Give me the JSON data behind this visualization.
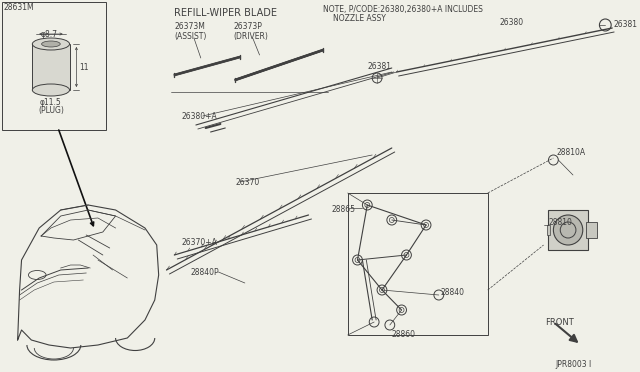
{
  "bg_color": "#f0f0e8",
  "line_color": "#404040",
  "lc_dark": "#282828",
  "plug_label": "28631M",
  "plug_dim1": "φ8.7",
  "plug_dim2": "11",
  "plug_dim3": "φ11.5",
  "plug_sub": "(PLUG)",
  "refill_title": "REFILL-WIPER BLADE",
  "label_26373M": "26373M\n(ASSIST)",
  "label_26373P": "26373P\n(DRIVER)",
  "label_26380A": "26380+A",
  "label_26370": "26370",
  "label_26370A": "26370+A",
  "label_28840P": "28840P",
  "note_line1": "NOTE, P/CODE:26380,26380+A INCLUDES",
  "note_line2": "NOZZLE ASSY",
  "label_26381_top": "26381",
  "label_26380": "26380",
  "label_26381_mid": "26381",
  "label_28810A": "28810A",
  "label_28810": "28810",
  "label_28865": "28865",
  "label_28840": "28840",
  "label_28860": "28860",
  "label_front": "FRONT",
  "label_jp": "JPR8003 I",
  "fs": 5.5,
  "fn": 6.0,
  "ft": 7.0
}
